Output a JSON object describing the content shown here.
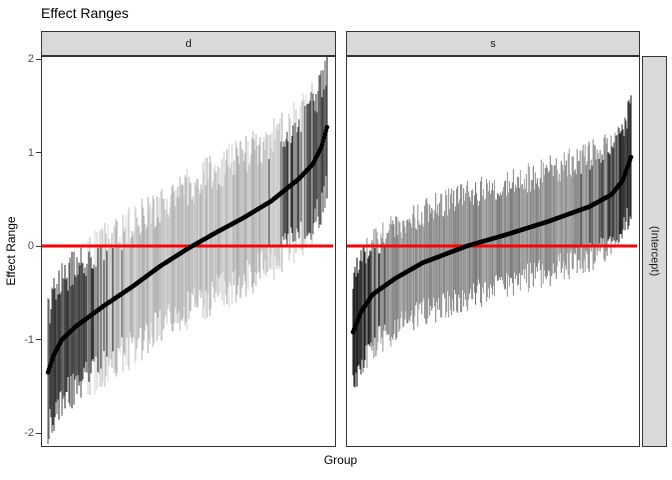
{
  "title": "Effect Ranges",
  "chart_data": {
    "type": "pointrange-caterpillar",
    "title": "Effect Ranges",
    "xlabel": "Group",
    "ylabel": "Effect Range",
    "y_ticks": [
      2,
      1,
      0,
      -1,
      -2
    ],
    "ylim": [
      -2.15,
      2.05
    ],
    "grid": "off",
    "legend": "none",
    "x_tick_labels": "hidden (one position per group)",
    "reference_line": {
      "y": 0,
      "color": "#FF0000",
      "thickness_px": 3
    },
    "facet_columns": [
      "d",
      "s"
    ],
    "facet_row": "(Intercept)",
    "facets": [
      {
        "label": "d",
        "n_groups": 280,
        "estimates_sorted_quantiles": {
          "fractions": [
            0,
            0.02,
            0.05,
            0.1,
            0.2,
            0.3,
            0.4,
            0.5,
            0.6,
            0.7,
            0.8,
            0.9,
            0.95,
            0.98,
            1.0
          ],
          "values": [
            -1.35,
            -1.17,
            -1.0,
            -0.86,
            -0.64,
            -0.44,
            -0.22,
            -0.03,
            0.14,
            0.3,
            0.48,
            0.72,
            0.88,
            1.06,
            1.27
          ]
        },
        "estimate_range": [
          -1.35,
          1.27
        ],
        "interval_extent": [
          -2.05,
          1.87
        ],
        "interval_half_width": {
          "min": 0.45,
          "max": 0.88
        },
        "bar_gray_levels": {
          "significant": [
            40,
            110
          ],
          "not_significant": [
            172,
            220
          ]
        },
        "point_color": "#000000"
      },
      {
        "label": "s",
        "n_groups": 280,
        "estimates_sorted_quantiles": {
          "fractions": [
            0,
            0.03,
            0.07,
            0.15,
            0.25,
            0.41,
            0.55,
            0.7,
            0.85,
            0.93,
            0.97,
            1.0
          ],
          "values": [
            -0.92,
            -0.7,
            -0.52,
            -0.35,
            -0.18,
            0.0,
            0.12,
            0.26,
            0.42,
            0.55,
            0.7,
            0.95
          ]
        },
        "estimate_range": [
          -0.92,
          0.95
        ],
        "interval_extent": [
          -1.35,
          1.31
        ],
        "interval_half_width": {
          "min": 0.38,
          "max": 0.7
        },
        "bar_gray_levels": {
          "significant": [
            20,
            85
          ],
          "not_significant": [
            118,
            172
          ]
        },
        "point_color": "#000000"
      }
    ]
  },
  "theme": {
    "accent_red": "#FF0000",
    "strip_fill": "#D9D9D9",
    "strip_text_color": "#1A1A1A",
    "panel_border_color": "#333333",
    "panel_background": "#FFFFFF",
    "tick_label_color": "#4D4D4D",
    "title_color": "#000000",
    "point_color": "#000000"
  }
}
